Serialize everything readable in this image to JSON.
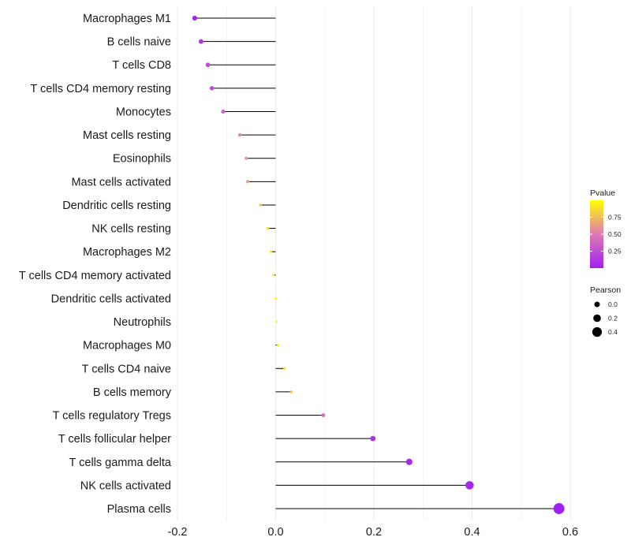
{
  "chart_data": {
    "type": "lollipop",
    "title": "",
    "xlabel": "",
    "ylabel": "",
    "xlim": [
      -0.2,
      0.6
    ],
    "x_ticks": [
      -0.2,
      0.0,
      0.2,
      0.4,
      0.6
    ],
    "x_tick_labels": [
      "-0.2",
      "0.0",
      "0.2",
      "0.4",
      "0.6"
    ],
    "grid": true,
    "categories": [
      "Macrophages M1",
      "B cells naive",
      "T cells CD8",
      "T cells CD4 memory resting",
      "Monocytes",
      "Mast cells resting",
      "Eosinophils",
      "Mast cells activated",
      "Dendritic cells resting",
      "NK cells resting",
      "Macrophages M2",
      "T cells CD4 memory activated",
      "Dendritic cells activated",
      "Neutrophils",
      "Macrophages M0",
      "T cells CD4 naive",
      "B cells memory",
      "T cells regulatory  Tregs",
      "T cells follicular helper",
      "T cells gamma delta",
      "NK cells activated",
      "Plasma cells"
    ],
    "values": [
      -0.165,
      -0.152,
      -0.138,
      -0.13,
      -0.107,
      -0.073,
      -0.06,
      -0.057,
      -0.031,
      -0.016,
      -0.01,
      -0.005,
      0.0,
      0.002,
      0.005,
      0.018,
      0.032,
      0.097,
      0.198,
      0.272,
      0.395,
      0.577
    ],
    "pvalues": [
      0.02,
      0.12,
      0.22,
      0.24,
      0.35,
      0.55,
      0.6,
      0.65,
      0.8,
      0.88,
      0.92,
      0.95,
      0.99,
      0.99,
      0.97,
      0.88,
      0.78,
      0.45,
      0.1,
      0.06,
      0.04,
      0.01
    ],
    "legend": {
      "color": {
        "title": "Pvalue",
        "ticks": [
          0.75,
          0.5,
          0.25
        ],
        "tick_labels": [
          "0.75",
          "0.50",
          "0.25"
        ],
        "low_color": "#a020f0",
        "mid_color": "#e07ab3",
        "high_color": "#ffff00"
      },
      "size": {
        "title": "Pearson",
        "values": [
          0.0,
          0.2,
          0.4
        ],
        "labels": [
          "0.0",
          "0.2",
          "0.4"
        ]
      },
      "placement": "right"
    }
  }
}
